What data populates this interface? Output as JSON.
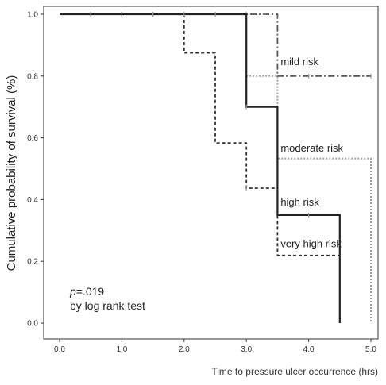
{
  "chart_data": {
    "type": "line",
    "subtype": "kaplan-meier step curves",
    "xlabel": "Time to pressure ulcer occurrence (hrs)",
    "ylabel": "Cumulative probability of survival (%)",
    "xlim": [
      0,
      5
    ],
    "ylim": [
      0,
      1
    ],
    "xticks": [
      "0.0",
      "1.0",
      "2.0",
      "3.0",
      "4.0",
      "5.0"
    ],
    "yticks": [
      "0.0",
      "0.2",
      "0.4",
      "0.6",
      "0.8",
      "1.0"
    ],
    "grid": false,
    "annotation": {
      "p_prefix": "p",
      "p_value": "=.019",
      "test": "by log rank test"
    },
    "series": [
      {
        "name": "mild risk",
        "style": "dash-dot",
        "color": "#555555",
        "steps": [
          [
            0,
            1.0
          ],
          [
            3.5,
            1.0
          ],
          [
            3.5,
            0.8
          ],
          [
            5.0,
            0.8
          ]
        ],
        "censored": [
          [
            0.5,
            1.0
          ],
          [
            1.0,
            1.0
          ],
          [
            1.5,
            1.0
          ],
          [
            2.0,
            1.0
          ],
          [
            2.5,
            1.0
          ],
          [
            3.0,
            1.0
          ],
          [
            4.0,
            0.8
          ],
          [
            5.0,
            0.8
          ]
        ]
      },
      {
        "name": "moderate risk",
        "style": "dotted",
        "color": "#a0a0a0",
        "steps": [
          [
            3.0,
            0.8
          ],
          [
            3.5,
            0.8
          ],
          [
            3.5,
            0.533
          ],
          [
            5.0,
            0.533
          ],
          [
            5.0,
            0.0
          ]
        ],
        "censored": []
      },
      {
        "name": "high risk",
        "style": "solid",
        "color": "#222222",
        "steps": [
          [
            0,
            1.0
          ],
          [
            3.0,
            1.0
          ],
          [
            3.0,
            0.7
          ],
          [
            3.5,
            0.7
          ],
          [
            3.5,
            0.35
          ],
          [
            4.5,
            0.35
          ],
          [
            4.5,
            0.0
          ]
        ],
        "censored": [
          [
            0.5,
            1.0
          ],
          [
            1.0,
            1.0
          ],
          [
            1.5,
            1.0
          ],
          [
            2.0,
            1.0
          ],
          [
            2.5,
            1.0
          ],
          [
            3.0,
            0.7
          ],
          [
            4.0,
            0.35
          ]
        ]
      },
      {
        "name": "very high risk",
        "style": "dashed",
        "color": "#333333",
        "steps": [
          [
            2.0,
            1.0
          ],
          [
            2.0,
            0.875
          ],
          [
            2.5,
            0.875
          ],
          [
            2.5,
            0.583
          ],
          [
            3.0,
            0.583
          ],
          [
            3.0,
            0.437
          ],
          [
            3.5,
            0.437
          ],
          [
            3.5,
            0.219
          ],
          [
            4.5,
            0.219
          ]
        ],
        "censored": [
          [
            3.0,
            0.437
          ]
        ]
      }
    ],
    "curve_labels": [
      {
        "text": "mild risk",
        "x": 3.55,
        "y": 0.835
      },
      {
        "text": "moderate risk",
        "x": 3.55,
        "y": 0.555
      },
      {
        "text": "high risk",
        "x": 3.55,
        "y": 0.38
      },
      {
        "text": "very high risk",
        "x": 3.55,
        "y": 0.245
      }
    ]
  }
}
